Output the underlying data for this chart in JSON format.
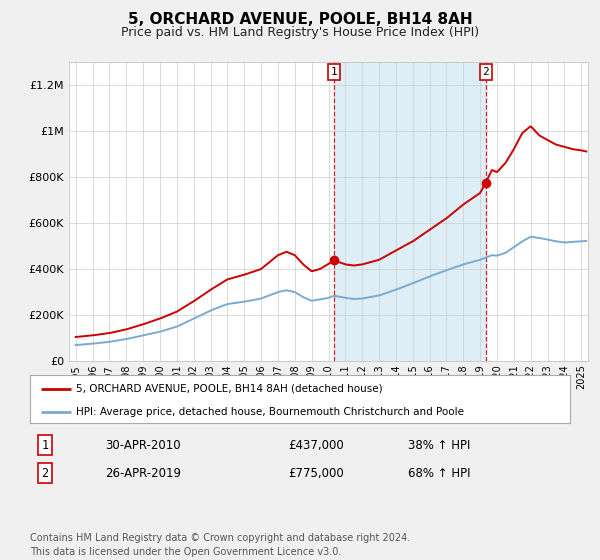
{
  "title": "5, ORCHARD AVENUE, POOLE, BH14 8AH",
  "subtitle": "Price paid vs. HM Land Registry's House Price Index (HPI)",
  "ylim": [
    0,
    1300000
  ],
  "yticks": [
    0,
    200000,
    400000,
    600000,
    800000,
    1000000,
    1200000
  ],
  "ytick_labels": [
    "£0",
    "£200K",
    "£400K",
    "£600K",
    "£800K",
    "£1M",
    "£1.2M"
  ],
  "xlim_left": 1994.6,
  "xlim_right": 2025.4,
  "x_start_year": 1995,
  "x_end_year": 2025,
  "red_line_color": "#cc0000",
  "blue_line_color": "#7aabcf",
  "shaded_region_color": "#ddeef7",
  "marker1_x": 2010.33,
  "marker1_y": 437000,
  "marker2_x": 2019.33,
  "marker2_y": 775000,
  "marker1_label": "1",
  "marker2_label": "2",
  "marker1_date": "30-APR-2010",
  "marker1_price": "£437,000",
  "marker1_hpi": "38% ↑ HPI",
  "marker2_date": "26-APR-2019",
  "marker2_price": "£775,000",
  "marker2_hpi": "68% ↑ HPI",
  "legend_label_red": "5, ORCHARD AVENUE, POOLE, BH14 8AH (detached house)",
  "legend_label_blue": "HPI: Average price, detached house, Bournemouth Christchurch and Poole",
  "footer_text": "Contains HM Land Registry data © Crown copyright and database right 2024.\nThis data is licensed under the Open Government Licence v3.0.",
  "background_color": "#f0f0f0",
  "plot_bg_color": "#ffffff",
  "grid_color": "#cccccc",
  "title_fontsize": 11,
  "subtitle_fontsize": 9,
  "tick_fontsize": 7,
  "ytick_fontsize": 8,
  "legend_fontsize": 7.5,
  "table_fontsize": 8.5,
  "footer_fontsize": 7
}
